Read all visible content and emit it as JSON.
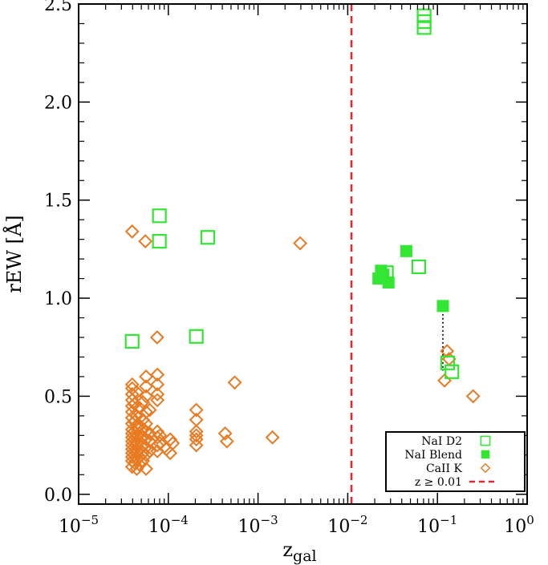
{
  "chart_data": {
    "type": "scatter",
    "title": "",
    "xlabel": "z",
    "xlabel_sub": "gal",
    "ylabel": "rEW [Å]",
    "xscale": "log",
    "xlim": [
      1e-05,
      1
    ],
    "ylim": [
      -0.05,
      2.5
    ],
    "x_ticks": [
      {
        "value": 1e-05,
        "base": "10",
        "exp": "−5"
      },
      {
        "value": 0.0001,
        "base": "10",
        "exp": "−4"
      },
      {
        "value": 0.001,
        "base": "10",
        "exp": "−3"
      },
      {
        "value": 0.01,
        "base": "10",
        "exp": "−2"
      },
      {
        "value": 0.1,
        "base": "10",
        "exp": "−1"
      },
      {
        "value": 1,
        "base": "10",
        "exp": "0"
      }
    ],
    "y_ticks": [
      {
        "value": 0.0,
        "label": "0.0"
      },
      {
        "value": 0.5,
        "label": "0.5"
      },
      {
        "value": 1.0,
        "label": "1.0"
      },
      {
        "value": 1.5,
        "label": "1.5"
      },
      {
        "value": 2.0,
        "label": "2.0"
      },
      {
        "value": 2.5,
        "label": "2.5"
      }
    ],
    "vline": {
      "x": 0.011,
      "color": "#e8262a",
      "style": "dashed"
    },
    "connector": {
      "x": 0.115,
      "y": [
        0.96,
        0.63
      ]
    },
    "legend_position": "bottom-right",
    "series": [
      {
        "name": "NaI D2",
        "marker": "open-square",
        "color": "#33e633",
        "points": [
          [
            0.071,
            2.38
          ],
          [
            0.071,
            2.41
          ],
          [
            0.071,
            2.44
          ],
          [
            3.95e-05,
            0.78
          ],
          [
            7.95e-05,
            1.42
          ],
          [
            7.95e-05,
            1.29
          ],
          [
            0.000205,
            0.805
          ],
          [
            0.000275,
            1.31
          ],
          [
            0.027,
            1.13
          ],
          [
            0.062,
            1.16
          ],
          [
            0.13,
            0.67
          ],
          [
            0.145,
            0.625
          ]
        ]
      },
      {
        "name": "NaI Blend",
        "marker": "filled-square",
        "color": "#33e633",
        "points": [
          [
            0.022,
            1.1
          ],
          [
            0.0235,
            1.14
          ],
          [
            0.025,
            1.12
          ],
          [
            0.0285,
            1.08
          ],
          [
            0.045,
            1.24
          ],
          [
            0.115,
            0.96
          ]
        ]
      },
      {
        "name": "CaII K",
        "marker": "open-diamond",
        "color": "#e87a22",
        "points": [
          [
            3.95e-05,
            1.34
          ],
          [
            5.55e-05,
            1.29
          ],
          [
            3.95e-05,
            0.14
          ],
          [
            3.95e-05,
            0.17
          ],
          [
            3.95e-05,
            0.19
          ],
          [
            3.95e-05,
            0.21
          ],
          [
            3.95e-05,
            0.23
          ],
          [
            3.95e-05,
            0.25
          ],
          [
            3.95e-05,
            0.27
          ],
          [
            3.95e-05,
            0.29
          ],
          [
            3.95e-05,
            0.31
          ],
          [
            3.95e-05,
            0.33
          ],
          [
            3.95e-05,
            0.36
          ],
          [
            3.95e-05,
            0.39
          ],
          [
            3.95e-05,
            0.42
          ],
          [
            3.95e-05,
            0.45
          ],
          [
            3.95e-05,
            0.48
          ],
          [
            3.95e-05,
            0.51
          ],
          [
            3.95e-05,
            0.54
          ],
          [
            3.95e-05,
            0.56
          ],
          [
            4.2e-05,
            0.16
          ],
          [
            4.2e-05,
            0.2
          ],
          [
            4.2e-05,
            0.24
          ],
          [
            4.2e-05,
            0.28
          ],
          [
            4.2e-05,
            0.32
          ],
          [
            4.2e-05,
            0.37
          ],
          [
            4.2e-05,
            0.46
          ],
          [
            4.45e-05,
            0.13
          ],
          [
            4.45e-05,
            0.18
          ],
          [
            4.45e-05,
            0.22
          ],
          [
            4.45e-05,
            0.26
          ],
          [
            4.45e-05,
            0.3
          ],
          [
            4.45e-05,
            0.34
          ],
          [
            4.45e-05,
            0.4
          ],
          [
            4.45e-05,
            0.52
          ],
          [
            4.8e-05,
            0.15
          ],
          [
            4.8e-05,
            0.19
          ],
          [
            4.8e-05,
            0.23
          ],
          [
            4.8e-05,
            0.27
          ],
          [
            4.8e-05,
            0.31
          ],
          [
            4.8e-05,
            0.35
          ],
          [
            4.8e-05,
            0.44
          ],
          [
            5.2e-05,
            0.17
          ],
          [
            5.2e-05,
            0.21
          ],
          [
            5.2e-05,
            0.25
          ],
          [
            5.2e-05,
            0.29
          ],
          [
            5.2e-05,
            0.33
          ],
          [
            5.2e-05,
            0.38
          ],
          [
            5.2e-05,
            0.47
          ],
          [
            5.65e-05,
            0.13
          ],
          [
            5.65e-05,
            0.2
          ],
          [
            5.65e-05,
            0.24
          ],
          [
            5.65e-05,
            0.28
          ],
          [
            5.65e-05,
            0.32
          ],
          [
            5.65e-05,
            0.36
          ],
          [
            5.65e-05,
            0.42
          ],
          [
            5.65e-05,
            0.5
          ],
          [
            5.65e-05,
            0.55
          ],
          [
            5.65e-05,
            0.6
          ],
          [
            6.2e-05,
            0.22
          ],
          [
            6.2e-05,
            0.27
          ],
          [
            6.2e-05,
            0.31
          ],
          [
            6.2e-05,
            0.43
          ],
          [
            7.5e-05,
            0.8
          ],
          [
            7.55e-05,
            0.61
          ],
          [
            7.55e-05,
            0.56
          ],
          [
            7.55e-05,
            0.51
          ],
          [
            7.55e-05,
            0.48
          ],
          [
            7.55e-05,
            0.32
          ],
          [
            7.55e-05,
            0.29
          ],
          [
            7.55e-05,
            0.25
          ],
          [
            7.55e-05,
            0.22
          ],
          [
            8.05e-05,
            0.3
          ],
          [
            8.05e-05,
            0.26
          ],
          [
            9.5e-05,
            0.23
          ],
          [
            0.000105,
            0.28
          ],
          [
            0.000105,
            0.21
          ],
          [
            0.000112,
            0.26
          ],
          [
            0.000205,
            0.43
          ],
          [
            0.000205,
            0.38
          ],
          [
            0.000205,
            0.32
          ],
          [
            0.000205,
            0.3
          ],
          [
            0.000205,
            0.28
          ],
          [
            0.000205,
            0.25
          ],
          [
            0.00043,
            0.31
          ],
          [
            0.00045,
            0.27
          ],
          [
            0.00055,
            0.57
          ],
          [
            0.00145,
            0.29
          ],
          [
            0.00295,
            1.28
          ],
          [
            0.12,
            0.58
          ],
          [
            0.128,
            0.73
          ],
          [
            0.135,
            0.69
          ],
          [
            0.25,
            0.5
          ]
        ]
      }
    ],
    "legend": [
      {
        "label": "NaI D2",
        "marker": "open-square",
        "color": "#33e633"
      },
      {
        "label": "NaI Blend",
        "marker": "filled-square",
        "color": "#33e633"
      },
      {
        "label": "CaII K",
        "marker": "open-diamond",
        "color": "#e87a22"
      },
      {
        "label": "z ≥ 0.01",
        "marker": "dashed-line",
        "color": "#e8262a"
      }
    ]
  }
}
